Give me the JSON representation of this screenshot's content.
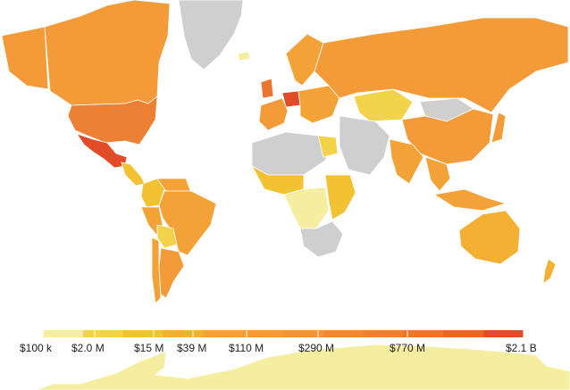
{
  "map": {
    "no_data_color": "#cfcfcf",
    "border_color": "#ffffff",
    "background": "#ffffff"
  },
  "legend": {
    "colors": [
      "#f5eea0",
      "#f2d34a",
      "#f2c232",
      "#f3b033",
      "#f3a238",
      "#f29b38",
      "#f1953a",
      "#ee8a36",
      "#ec8034",
      "#e97531",
      "#e6662d",
      "#e24b27"
    ],
    "tick_labels": [
      "$100 k",
      "$2.0 M",
      "$15 M",
      "$39 M",
      "$110 M",
      "$290 M",
      "$770 M",
      "$2.1 B"
    ]
  },
  "regions": [
    {
      "name": "Canada",
      "color": "#f29b38"
    },
    {
      "name": "Alaska",
      "color": "#f29b38"
    },
    {
      "name": "United States",
      "color": "#ec8034"
    },
    {
      "name": "Mexico",
      "color": "#e24b27"
    },
    {
      "name": "Central America",
      "color": "#f2c232"
    },
    {
      "name": "Colombia",
      "color": "#f2c232"
    },
    {
      "name": "Venezuela",
      "color": "#f3a238"
    },
    {
      "name": "Brazil",
      "color": "#f3a238"
    },
    {
      "name": "Peru",
      "color": "#f3a238"
    },
    {
      "name": "Bolivia",
      "color": "#f2d34a"
    },
    {
      "name": "Argentina",
      "color": "#f29b38"
    },
    {
      "name": "Chile",
      "color": "#f3a238"
    },
    {
      "name": "Greenland",
      "color": "#cfcfcf"
    },
    {
      "name": "Iceland",
      "color": "#f5eea0"
    },
    {
      "name": "Scandinavia",
      "color": "#f3a238"
    },
    {
      "name": "United Kingdom",
      "color": "#e97531"
    },
    {
      "name": "Germany",
      "color": "#e24b27"
    },
    {
      "name": "Western Europe",
      "color": "#f29b38"
    },
    {
      "name": "Eastern Europe",
      "color": "#f3a238"
    },
    {
      "name": "Russia",
      "color": "#f29b38"
    },
    {
      "name": "Kazakhstan",
      "color": "#f2d34a"
    },
    {
      "name": "Mongolia",
      "color": "#cfcfcf"
    },
    {
      "name": "China",
      "color": "#f29b38"
    },
    {
      "name": "Middle East",
      "color": "#cfcfcf"
    },
    {
      "name": "India",
      "color": "#f3a238"
    },
    {
      "name": "Southeast Asia",
      "color": "#f3a238"
    },
    {
      "name": "Japan",
      "color": "#f29b38"
    },
    {
      "name": "Indonesia",
      "color": "#f3a238"
    },
    {
      "name": "Australia",
      "color": "#f3b033"
    },
    {
      "name": "New Zealand",
      "color": "#f3b033"
    },
    {
      "name": "North Africa",
      "color": "#cfcfcf"
    },
    {
      "name": "Egypt",
      "color": "#f2d34a"
    },
    {
      "name": "West Africa",
      "color": "#f2c232"
    },
    {
      "name": "Central Africa",
      "color": "#f5eea0"
    },
    {
      "name": "East Africa",
      "color": "#f2c232"
    },
    {
      "name": "Southern Africa",
      "color": "#cfcfcf"
    },
    {
      "name": "Antarctica",
      "color": "#f5eea0"
    }
  ]
}
